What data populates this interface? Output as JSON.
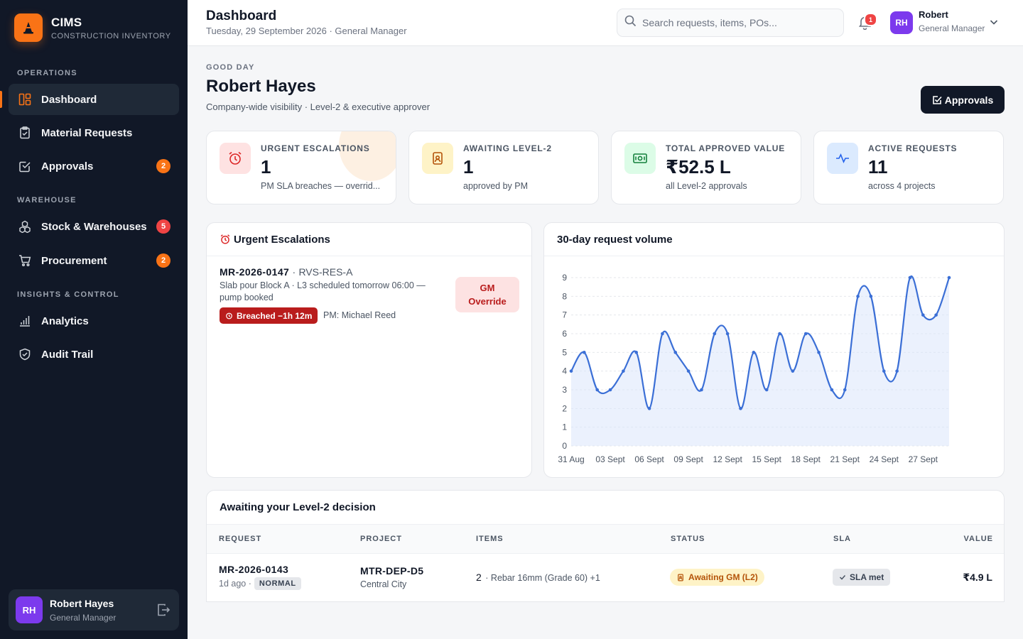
{
  "brand": {
    "name": "CIMS",
    "subtitle": "CONSTRUCTION INVENTORY"
  },
  "sidebar": {
    "sections": [
      "OPERATIONS",
      "WAREHOUSE",
      "INSIGHTS & CONTROL"
    ],
    "items": [
      {
        "label": "Dashboard",
        "icon": "dashboard-icon",
        "active": true
      },
      {
        "label": "Material Requests",
        "icon": "clipboard-icon"
      },
      {
        "label": "Approvals",
        "icon": "check-square-icon",
        "badge": "2"
      },
      {
        "label": "Stock & Warehouses",
        "icon": "boxes-icon",
        "badge": "5"
      },
      {
        "label": "Procurement",
        "icon": "cart-icon",
        "badge": "2"
      },
      {
        "label": "Analytics",
        "icon": "bar-chart-icon"
      },
      {
        "label": "Audit Trail",
        "icon": "shield-icon"
      }
    ],
    "user": {
      "initials": "RH",
      "name": "Robert Hayes",
      "role": "General Manager"
    }
  },
  "header": {
    "title": "Dashboard",
    "subtitle": "Tuesday, 29 September 2026 · General Manager",
    "search_placeholder": "Search requests, items, POs...",
    "notification_count": "1",
    "user_initials": "RH",
    "user_name": "Robert",
    "user_role": "General Manager"
  },
  "greeting": {
    "eyebrow": "GOOD DAY",
    "name": "Robert Hayes",
    "subtitle": "Company-wide visibility · Level-2 & executive approver",
    "approvals_button": "Approvals"
  },
  "kpis": [
    {
      "label": "URGENT ESCALATIONS",
      "value": "1",
      "note": "PM SLA breaches — overrid...",
      "icon": "alarm-clock-icon",
      "color": "#dc2626"
    },
    {
      "label": "AWAITING LEVEL-2",
      "value": "1",
      "note": "approved by PM",
      "icon": "badge-icon",
      "color": "#b45309"
    },
    {
      "label": "TOTAL APPROVED VALUE",
      "value": "₹52.5 L",
      "note": "all Level-2 approvals",
      "icon": "banknote-icon",
      "color": "#15803d"
    },
    {
      "label": "ACTIVE REQUESTS",
      "value": "11",
      "note": "across 4 projects",
      "icon": "activity-icon",
      "color": "#2563eb"
    }
  ],
  "escalations": {
    "title": "Urgent Escalations",
    "item": {
      "id": "MR-2026-0147",
      "project": "RVS-RES-A",
      "description": "Slab pour Block A · L3 scheduled tomorrow 06:00 — pump booked",
      "breach": "Breached −1h 12m",
      "pm": "PM: Michael Reed",
      "action_line1": "GM",
      "action_line2": "Override"
    }
  },
  "chart_panel": {
    "title": "30-day request volume"
  },
  "chart_data": {
    "type": "area",
    "title": "30-day request volume",
    "x_ticks": [
      "31 Aug",
      "03 Sept",
      "06 Sept",
      "09 Sept",
      "12 Sept",
      "15 Sept",
      "18 Sept",
      "21 Sept",
      "24 Sept",
      "27 Sept"
    ],
    "y_ticks": [
      0,
      1,
      2,
      3,
      4,
      5,
      6,
      7,
      8,
      9
    ],
    "ylim": [
      0,
      9
    ],
    "x": [
      "31 Aug",
      "01 Sept",
      "02 Sept",
      "03 Sept",
      "04 Sept",
      "05 Sept",
      "06 Sept",
      "07 Sept",
      "08 Sept",
      "09 Sept",
      "10 Sept",
      "11 Sept",
      "12 Sept",
      "13 Sept",
      "14 Sept",
      "15 Sept",
      "16 Sept",
      "17 Sept",
      "18 Sept",
      "19 Sept",
      "20 Sept",
      "21 Sept",
      "22 Sept",
      "23 Sept",
      "24 Sept",
      "25 Sept",
      "26 Sept",
      "27 Sept",
      "28 Sept",
      "29 Sept"
    ],
    "series": [
      {
        "values": [
          4,
          5,
          3,
          3,
          4,
          5,
          2,
          6,
          5,
          4,
          3,
          6,
          6,
          2,
          5,
          3,
          6,
          4,
          6,
          5,
          3,
          3,
          8,
          8,
          4,
          4,
          9,
          7,
          7,
          9
        ],
        "color": "#3b6fd6"
      }
    ],
    "grid": true
  },
  "decisions": {
    "title": "Awaiting your Level-2 decision",
    "columns": [
      "REQUEST",
      "PROJECT",
      "ITEMS",
      "STATUS",
      "SLA",
      "VALUE"
    ],
    "rows": [
      {
        "id": "MR-2026-0143",
        "age": "1d ago ·",
        "priority": "NORMAL",
        "project_code": "MTR-DEP-D5",
        "project_city": "Central City",
        "item_count": "2",
        "items": "· Rebar 16mm (Grade 60) +1",
        "status": "Awaiting GM (L2)",
        "sla": "SLA met",
        "value": "₹4.9 L"
      }
    ]
  }
}
